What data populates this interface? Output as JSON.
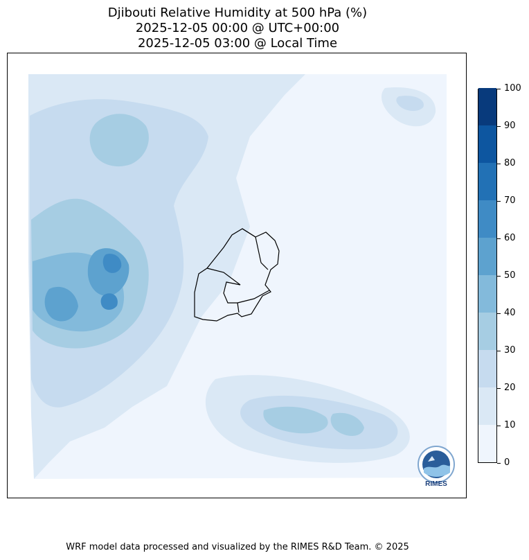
{
  "title": {
    "line1": "Djibouti Relative Humidity at 500 hPa (%)",
    "line2": "2025-12-05 00:00 @ UTC+00:00",
    "line3": "2025-12-05 03:00 @ Local Time"
  },
  "colorbar": {
    "levels": [
      0,
      10,
      20,
      30,
      40,
      50,
      60,
      70,
      80,
      90,
      100
    ],
    "labels": [
      "0",
      "10",
      "20",
      "30",
      "40",
      "50",
      "60",
      "70",
      "80",
      "90",
      "100"
    ],
    "colors": [
      "#eff5fd",
      "#dae8f5",
      "#c6dbef",
      "#a6cde3",
      "#83badb",
      "#5da2cf",
      "#3f8bc5",
      "#2271b5",
      "#0d56a0",
      "#083a7c"
    ]
  },
  "map": {
    "background_color": "#eff5fd",
    "border_color": "#000000"
  },
  "logo": {
    "text": "RIMES",
    "icon": "rimes-logo-icon"
  },
  "footer": {
    "text": "WRF model data processed and visualized by the RIMES R&D Team. © 2025"
  }
}
